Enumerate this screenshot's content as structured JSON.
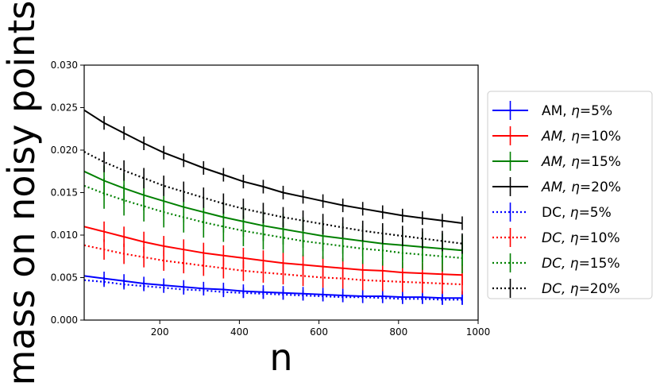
{
  "chart_data": {
    "type": "line",
    "title": "",
    "xlabel": "n",
    "ylabel": "mass on noisy points",
    "xlim": [
      10,
      1000
    ],
    "ylim": [
      0.0,
      0.03
    ],
    "xticks": [
      200,
      400,
      600,
      800,
      1000
    ],
    "xtick_labels": [
      "200",
      "400",
      "600",
      "800",
      "1000"
    ],
    "yticks": [
      0.0,
      0.005,
      0.01,
      0.015,
      0.02,
      0.025,
      0.03
    ],
    "ytick_labels": [
      "0.000",
      "0.005",
      "0.010",
      "0.015",
      "0.020",
      "0.025",
      "0.030"
    ],
    "grid": false,
    "legend_position": "outside-right",
    "x": [
      10,
      60,
      110,
      160,
      210,
      260,
      310,
      360,
      410,
      460,
      510,
      560,
      610,
      660,
      710,
      760,
      810,
      860,
      910,
      960
    ],
    "series": [
      {
        "name": "AM, η=5%",
        "label_prefix": "AM, ",
        "label_italic_prefix": false,
        "eta": "5%",
        "color": "#0000ff",
        "style": "solid",
        "values": [
          0.0052,
          0.0049,
          0.0046,
          0.0043,
          0.0041,
          0.0039,
          0.0037,
          0.0036,
          0.0034,
          0.0033,
          0.0032,
          0.0031,
          0.003,
          0.0029,
          0.0028,
          0.0028,
          0.0027,
          0.0027,
          0.0026,
          0.0026
        ],
        "err": [
          0.0008,
          0.0008,
          0.0008,
          0.0008,
          0.0008,
          0.0008,
          0.0008,
          0.0008,
          0.0008,
          0.0008,
          0.0008,
          0.0008,
          0.0008,
          0.0008,
          0.0008,
          0.0008,
          0.0008,
          0.0008,
          0.0008,
          0.0008
        ]
      },
      {
        "name": "AM, η=10%",
        "label_prefix": "AM, ",
        "label_italic_prefix": true,
        "eta": "10%",
        "color": "#ff0000",
        "style": "solid",
        "values": [
          0.011,
          0.0104,
          0.0098,
          0.0092,
          0.0087,
          0.0083,
          0.0079,
          0.0076,
          0.0073,
          0.007,
          0.0067,
          0.0065,
          0.0063,
          0.0061,
          0.0059,
          0.0058,
          0.0056,
          0.0055,
          0.0054,
          0.0053
        ],
        "err": [
          0.0012,
          0.0012,
          0.0012,
          0.0012,
          0.0012,
          0.0012,
          0.0012,
          0.0012,
          0.0012,
          0.0012,
          0.0012,
          0.0012,
          0.0012,
          0.0012,
          0.0012,
          0.0012,
          0.0012,
          0.0012,
          0.0012,
          0.0012
        ]
      },
      {
        "name": "AM, η=15%",
        "label_prefix": "AM, ",
        "label_italic_prefix": true,
        "eta": "15%",
        "color": "#008000",
        "style": "solid",
        "values": [
          0.0175,
          0.0164,
          0.0155,
          0.0147,
          0.014,
          0.0133,
          0.0127,
          0.0121,
          0.0116,
          0.0111,
          0.0107,
          0.0103,
          0.0099,
          0.0096,
          0.0093,
          0.009,
          0.0088,
          0.0086,
          0.0084,
          0.0082
        ],
        "err": [
          0.0018,
          0.0018,
          0.0018,
          0.0018,
          0.0018,
          0.0018,
          0.0018,
          0.0018,
          0.0018,
          0.0018,
          0.0018,
          0.0018,
          0.0018,
          0.0018,
          0.0018,
          0.0018,
          0.0018,
          0.0018,
          0.0018,
          0.0018
        ]
      },
      {
        "name": "AM, η=20%",
        "label_prefix": "AM, ",
        "label_italic_prefix": true,
        "eta": "20%",
        "color": "#000000",
        "style": "solid",
        "values": [
          0.0247,
          0.0232,
          0.022,
          0.0208,
          0.0197,
          0.0188,
          0.0179,
          0.0171,
          0.0163,
          0.0157,
          0.015,
          0.0145,
          0.014,
          0.0135,
          0.0131,
          0.0127,
          0.0123,
          0.012,
          0.0117,
          0.0114
        ],
        "err": [
          0.0008,
          0.0008,
          0.0008,
          0.0008,
          0.0008,
          0.0008,
          0.0008,
          0.0008,
          0.0008,
          0.0008,
          0.0008,
          0.0008,
          0.0008,
          0.0008,
          0.0008,
          0.0008,
          0.0008,
          0.0008,
          0.0008,
          0.0008
        ]
      },
      {
        "name": "DC, η=5%",
        "label_prefix": "DC, ",
        "label_italic_prefix": false,
        "eta": "5%",
        "color": "#0000ff",
        "style": "dotted",
        "values": [
          0.0047,
          0.0045,
          0.0042,
          0.004,
          0.0038,
          0.0036,
          0.0035,
          0.0033,
          0.0032,
          0.0031,
          0.003,
          0.0029,
          0.0028,
          0.0027,
          0.0027,
          0.0026,
          0.0025,
          0.0025,
          0.0024,
          0.0024
        ],
        "err": [
          0.0006,
          0.0006,
          0.0006,
          0.0006,
          0.0006,
          0.0006,
          0.0006,
          0.0006,
          0.0006,
          0.0006,
          0.0006,
          0.0006,
          0.0006,
          0.0006,
          0.0006,
          0.0006,
          0.0006,
          0.0006,
          0.0006,
          0.0006
        ]
      },
      {
        "name": "DC, η=10%",
        "label_prefix": "DC, ",
        "label_italic_prefix": true,
        "eta": "10%",
        "color": "#ff0000",
        "style": "dotted",
        "values": [
          0.0088,
          0.0083,
          0.0078,
          0.0074,
          0.007,
          0.0067,
          0.0064,
          0.0061,
          0.0058,
          0.0056,
          0.0054,
          0.0052,
          0.005,
          0.0049,
          0.0047,
          0.0046,
          0.0045,
          0.0044,
          0.0043,
          0.0042
        ],
        "err": [
          0.0012,
          0.0012,
          0.0012,
          0.0012,
          0.0012,
          0.0012,
          0.0012,
          0.0012,
          0.0012,
          0.0012,
          0.0012,
          0.0012,
          0.0012,
          0.0012,
          0.0012,
          0.0012,
          0.0012,
          0.0012,
          0.0012,
          0.0012
        ]
      },
      {
        "name": "DC, η=15%",
        "label_prefix": "DC, ",
        "label_italic_prefix": true,
        "eta": "15%",
        "color": "#008000",
        "style": "dotted",
        "values": [
          0.0158,
          0.0149,
          0.0141,
          0.0134,
          0.0127,
          0.0121,
          0.0115,
          0.011,
          0.0105,
          0.0101,
          0.0097,
          0.0093,
          0.009,
          0.0087,
          0.0084,
          0.0082,
          0.0079,
          0.0077,
          0.0075,
          0.0073
        ],
        "err": [
          0.0018,
          0.0018,
          0.0018,
          0.0018,
          0.0018,
          0.0018,
          0.0018,
          0.0018,
          0.0018,
          0.0018,
          0.0018,
          0.0018,
          0.0018,
          0.0018,
          0.0018,
          0.0018,
          0.0018,
          0.0018,
          0.0018,
          0.0018
        ]
      },
      {
        "name": "DC, η=20%",
        "label_prefix": "DC, ",
        "label_italic_prefix": true,
        "eta": "20%",
        "color": "#000000",
        "style": "dotted",
        "values": [
          0.0198,
          0.0186,
          0.0176,
          0.0167,
          0.0158,
          0.0151,
          0.0144,
          0.0137,
          0.0131,
          0.0126,
          0.0121,
          0.0117,
          0.0113,
          0.0109,
          0.0105,
          0.0102,
          0.0099,
          0.0096,
          0.0093,
          0.009
        ],
        "err": [
          0.0012,
          0.0012,
          0.0012,
          0.0012,
          0.0012,
          0.0012,
          0.0012,
          0.0012,
          0.0012,
          0.0012,
          0.0012,
          0.0012,
          0.0012,
          0.0012,
          0.0012,
          0.0012,
          0.0012,
          0.0012,
          0.0012,
          0.0012
        ]
      }
    ]
  }
}
